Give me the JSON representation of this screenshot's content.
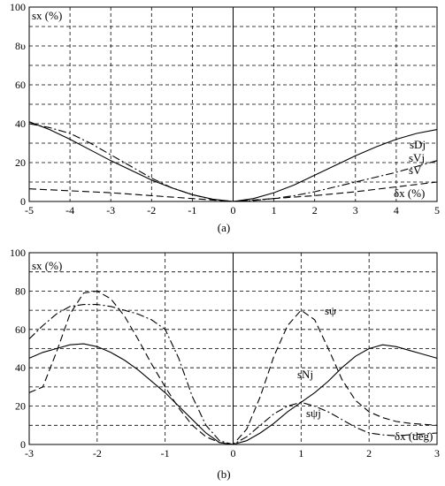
{
  "chart_data": [
    {
      "type": "line",
      "caption": "(a)",
      "ylabel": "sx (%)",
      "xlabel": "δx (%)",
      "xlim": [
        -5,
        5
      ],
      "ylim": [
        0,
        100
      ],
      "x_ticks": [
        -5,
        -4,
        -3,
        -2,
        -1,
        0,
        1,
        2,
        3,
        4,
        5
      ],
      "y_ticks": [
        0,
        20,
        40,
        60,
        80,
        100
      ],
      "y_tick_labels": [
        "0",
        "20",
        "40",
        "60",
        "8υ",
        "100"
      ],
      "grid": true,
      "series": [
        {
          "name": "sDj",
          "style": "solid",
          "x": [
            -5,
            -4.5,
            -4,
            -3.5,
            -3,
            -2.5,
            -2,
            -1.5,
            -1,
            -0.5,
            0,
            0.5,
            1,
            1.5,
            2,
            2.5,
            3,
            3.5,
            4,
            4.5,
            5
          ],
          "y": [
            41,
            37,
            32,
            26.5,
            21,
            16,
            11,
            7,
            3.5,
            1.2,
            0,
            1.5,
            4.5,
            8.5,
            13.5,
            18.5,
            23.5,
            28,
            32,
            35,
            37
          ]
        },
        {
          "name": "sVj",
          "style": "dashdot",
          "x": [
            -5,
            -4.5,
            -4,
            -3.5,
            -3,
            -2.5,
            -2,
            -1.5,
            -1,
            -0.5,
            0,
            0.5,
            1,
            1.5,
            2,
            2.5,
            3,
            3.5,
            4,
            4.5,
            5
          ],
          "y": [
            40,
            38,
            35,
            30,
            24,
            18,
            12,
            7,
            3.5,
            1,
            0,
            0.5,
            1.5,
            3,
            5,
            7.5,
            10,
            12.5,
            15,
            18,
            21
          ]
        },
        {
          "name": "sV",
          "style": "dashed",
          "x": [
            -5,
            -4,
            -3,
            -2,
            -1,
            0,
            1,
            2,
            3,
            4,
            5
          ],
          "y": [
            6.5,
            5.5,
            4.5,
            3,
            1.5,
            0,
            1.5,
            3,
            5,
            7.5,
            10
          ]
        }
      ]
    },
    {
      "type": "line",
      "caption": "(b)",
      "ylabel": "sx (%)",
      "xlabel": "δx (deg)",
      "xlim": [
        -3,
        3
      ],
      "ylim": [
        0,
        100
      ],
      "x_ticks": [
        -3,
        -2,
        -1,
        0,
        1,
        2,
        3
      ],
      "y_ticks": [
        0,
        20,
        40,
        60,
        80,
        100
      ],
      "y_tick_labels": [
        "0",
        "20",
        "40",
        "60",
        "80",
        "100"
      ],
      "grid": true,
      "series": [
        {
          "name": "sψ",
          "style": "dashed",
          "x": [
            -3,
            -2.8,
            -2.6,
            -2.4,
            -2.2,
            -2.0,
            -1.8,
            -1.6,
            -1.4,
            -1.2,
            -1.0,
            -0.8,
            -0.6,
            -0.4,
            -0.2,
            0,
            0.2,
            0.4,
            0.6,
            0.8,
            1.0,
            1.2,
            1.4,
            1.6,
            1.8,
            2.0,
            2.2,
            2.4,
            2.6,
            2.8,
            3.0
          ],
          "y": [
            27,
            30,
            48,
            68,
            79,
            80,
            76,
            67,
            55,
            42,
            30,
            19,
            10,
            4,
            1,
            0,
            8,
            25,
            46,
            62,
            70,
            65,
            50,
            34,
            23,
            17,
            14,
            12,
            11,
            10.5,
            10
          ]
        },
        {
          "name": "sNj",
          "style": "solid",
          "x": [
            -3,
            -2.8,
            -2.6,
            -2.4,
            -2.2,
            -2.0,
            -1.8,
            -1.6,
            -1.4,
            -1.2,
            -1.0,
            -0.8,
            -0.6,
            -0.4,
            -0.2,
            0,
            0.2,
            0.4,
            0.6,
            0.8,
            1.0,
            1.2,
            1.4,
            1.6,
            1.8,
            2.0,
            2.2,
            2.4,
            2.6,
            2.8,
            3.0
          ],
          "y": [
            45,
            48,
            50,
            52,
            52.5,
            51,
            48,
            44,
            39,
            33,
            27,
            20,
            13,
            6,
            1,
            0,
            2,
            6,
            11,
            17,
            22,
            27,
            33,
            40,
            46,
            50,
            52,
            51,
            49,
            47,
            45
          ]
        },
        {
          "name": "sψj",
          "style": "dashdot",
          "x": [
            -3,
            -2.8,
            -2.6,
            -2.4,
            -2.2,
            -2.0,
            -1.8,
            -1.6,
            -1.4,
            -1.2,
            -1.0,
            -0.8,
            -0.6,
            -0.4,
            -0.2,
            0,
            0.2,
            0.4,
            0.6,
            0.8,
            1.0,
            1.2,
            1.4,
            1.6,
            1.8,
            2.0,
            2.2,
            2.4,
            2.6,
            2.8,
            3.0
          ],
          "y": [
            55,
            62,
            68,
            72,
            73,
            73,
            72,
            70,
            68,
            65,
            60,
            45,
            25,
            10,
            2,
            0,
            4,
            10,
            16,
            20,
            22,
            20,
            17,
            13,
            9,
            6,
            5,
            4.5,
            5,
            5.5,
            6
          ]
        }
      ]
    }
  ]
}
